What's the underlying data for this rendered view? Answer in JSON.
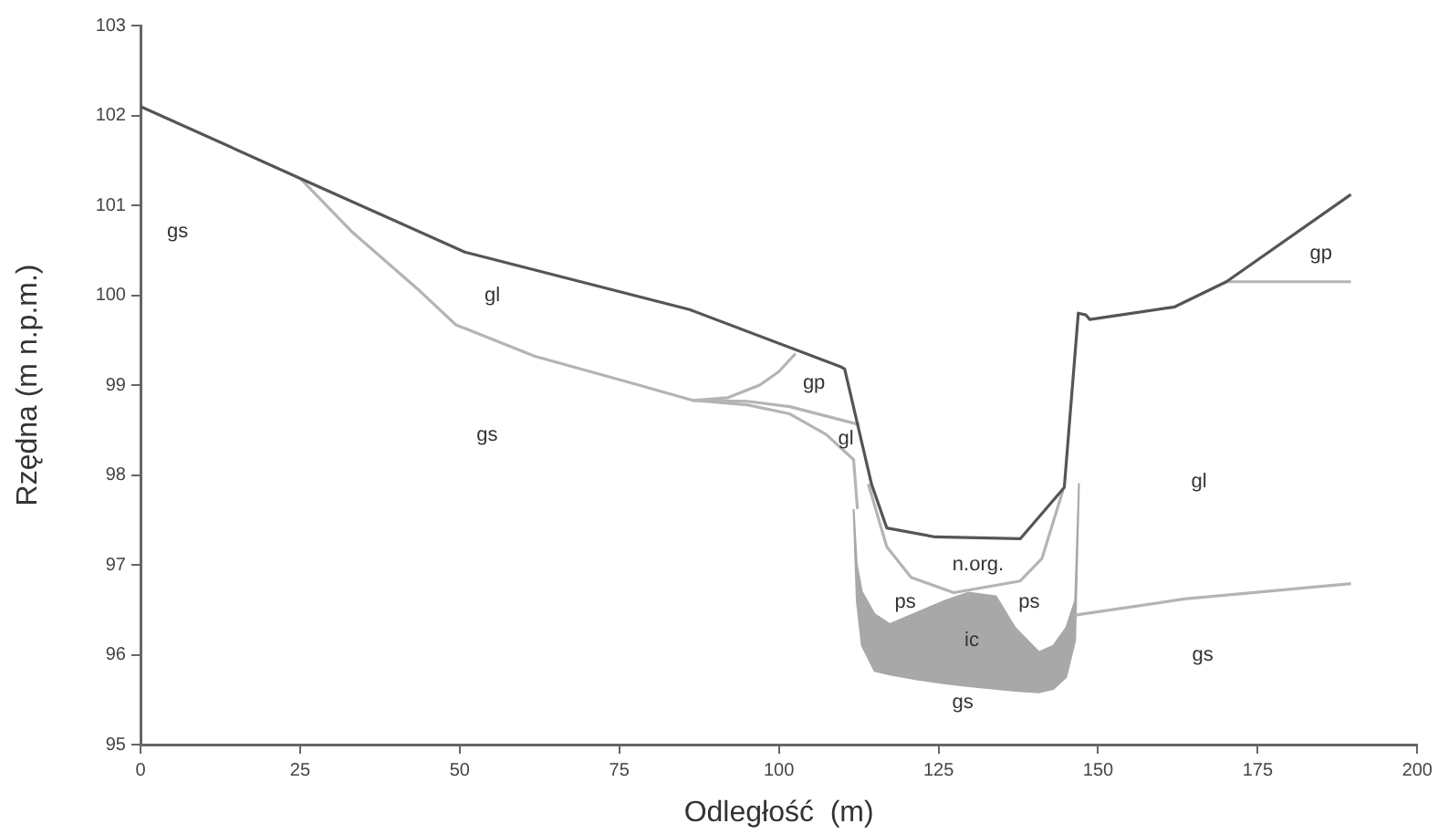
{
  "chart_data": {
    "type": "line",
    "xlabel": "Odległość  (m)",
    "ylabel": "Rzędna (m n.p.m.)",
    "xlim": [
      0,
      200
    ],
    "xticks": [
      0,
      25,
      50,
      75,
      100,
      125,
      150,
      175,
      200
    ],
    "ylim": [
      95,
      103
    ],
    "yticks": [
      95,
      96,
      97,
      98,
      99,
      100,
      101,
      102,
      103
    ],
    "grid": false,
    "legend": false,
    "marker": "none",
    "line_style": "solid",
    "series": [
      {
        "color": "#555555",
        "x": [
          0,
          25,
          50.8,
          86,
          109.8,
          110.3,
          114.5,
          116.9,
          124.5,
          137.8,
          144.7,
          146.9,
          148.1,
          148.7,
          162,
          170.1,
          189.6
        ],
        "values": [
          102.1,
          101.3,
          100.48,
          99.84,
          99.2,
          99.18,
          97.9,
          97.41,
          97.31,
          97.29,
          97.86,
          99.8,
          99.78,
          99.73,
          99.87,
          100.15,
          101.12
        ]
      },
      {
        "color": "#b4b4b4",
        "x": [
          25,
          33.2,
          43.7,
          49.4,
          61.8,
          76,
          86.5,
          95,
          101.7,
          107.4,
          111.7,
          112.3
        ],
        "values": [
          101.3,
          100.7,
          100.05,
          99.67,
          99.32,
          99.04,
          98.83,
          98.78,
          98.68,
          98.45,
          98.17,
          97.62
        ]
      },
      {
        "color": "#b4b4b4",
        "x": [
          86.5,
          95,
          101.7,
          112.6
        ],
        "values": [
          98.83,
          98.82,
          98.76,
          98.56
        ]
      },
      {
        "color": "#b4b4b4",
        "x": [
          86.5,
          92,
          97,
          100,
          102.6
        ],
        "values": [
          98.83,
          98.86,
          99.0,
          99.15,
          99.35
        ]
      },
      {
        "color": "#b4b4b4",
        "x": [
          114,
          116.9,
          120.7,
          127.4,
          137.8,
          141.2,
          144.5
        ],
        "values": [
          97.9,
          97.2,
          96.86,
          96.69,
          96.82,
          97.07,
          97.83
        ]
      },
      {
        "color": "#b4b4b4",
        "x": [
          146.4,
          163.5,
          189.6
        ],
        "values": [
          96.44,
          96.62,
          96.79
        ]
      },
      {
        "color": "#b4b4b4",
        "x": [
          170.1,
          189.6
        ],
        "values": [
          100.15,
          100.15
        ]
      },
      {
        "type": "area",
        "color": "#a8a8a8",
        "x": [
          111.7,
          112.2,
          113,
          115,
          117.4,
          122,
          126,
          129.7,
          134,
          137,
          140.7,
          143,
          145,
          146.4,
          147,
          146.4,
          145,
          143,
          140.7,
          137,
          134,
          129.7,
          126,
          122,
          117.4,
          115,
          113,
          112.2,
          111.7
        ],
        "values": [
          97.62,
          97.0,
          96.7,
          96.45,
          96.34,
          96.48,
          96.6,
          96.69,
          96.65,
          96.3,
          96.03,
          96.1,
          96.3,
          96.6,
          97.9,
          96.16,
          95.75,
          95.62,
          95.58,
          95.6,
          95.62,
          95.65,
          95.68,
          95.72,
          95.78,
          95.82,
          96.1,
          96.6,
          97.62
        ]
      }
    ],
    "annotations": [
      "gs",
      "gl",
      "gs",
      "gp",
      "gl",
      "n.org.",
      "ps",
      "ps",
      "ic",
      "gs",
      "gl",
      "gs",
      "gp"
    ]
  }
}
